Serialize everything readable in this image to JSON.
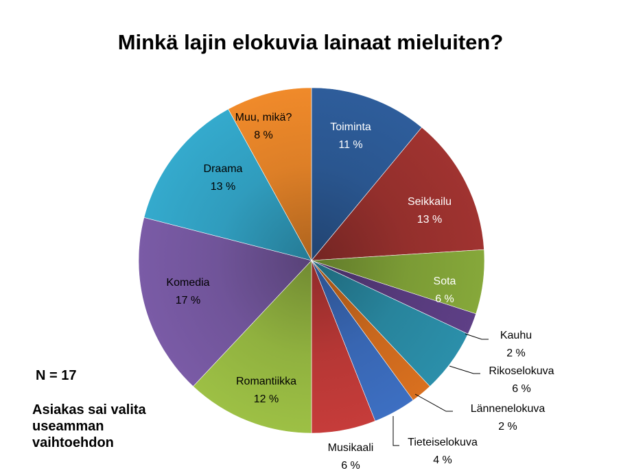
{
  "chart_data": {
    "type": "pie",
    "title": "Minkä lajin elokuvia lainaat mieluiten?",
    "start_angle_deg": 0,
    "direction": "clockwise",
    "slices": [
      {
        "name": "Toiminta",
        "value": 11,
        "value_label": "11 %",
        "color": "#2E5D9B",
        "label_color": "#ffffff"
      },
      {
        "name": "Seikkailu",
        "value": 13,
        "value_label": "13 %",
        "color": "#A03330",
        "label_color": "#ffffff"
      },
      {
        "name": "Sota",
        "value": 6,
        "value_label": "6 %",
        "color": "#86A83A",
        "label_color": "#ffffff"
      },
      {
        "name": "Kauhu",
        "value": 2,
        "value_label": "2 %",
        "color": "#5E3F86",
        "label_color": "#000000"
      },
      {
        "name": "Rikoselokuva",
        "value": 6,
        "value_label": "6 %",
        "color": "#2B8FAA",
        "label_color": "#000000"
      },
      {
        "name": "Lännenelokuva",
        "value": 2,
        "value_label": "2 %",
        "color": "#D9701F",
        "label_color": "#000000"
      },
      {
        "name": "Tieteiselokuva",
        "value": 4,
        "value_label": "4 %",
        "color": "#3D6FC2",
        "label_color": "#000000"
      },
      {
        "name": "Musikaali",
        "value": 6,
        "value_label": "6 %",
        "color": "#C63C3A",
        "label_color": "#000000"
      },
      {
        "name": "Romantiikka",
        "value": 12,
        "value_label": "12 %",
        "color": "#9DC045",
        "label_color": "#000000"
      },
      {
        "name": "Komedia",
        "value": 17,
        "value_label": "17 %",
        "color": "#7A5BA6",
        "label_color": "#000000"
      },
      {
        "name": "Draama",
        "value": 13,
        "value_label": "13 %",
        "color": "#34AACD",
        "label_color": "#000000"
      },
      {
        "name": "Muu, mikä?",
        "value": 8,
        "value_label": "8 %",
        "color": "#F08A2A",
        "label_color": "#000000"
      }
    ]
  },
  "notes": {
    "n": "N = 17",
    "choice": "Asiakas sai valita useamman vaihtoehdon"
  }
}
